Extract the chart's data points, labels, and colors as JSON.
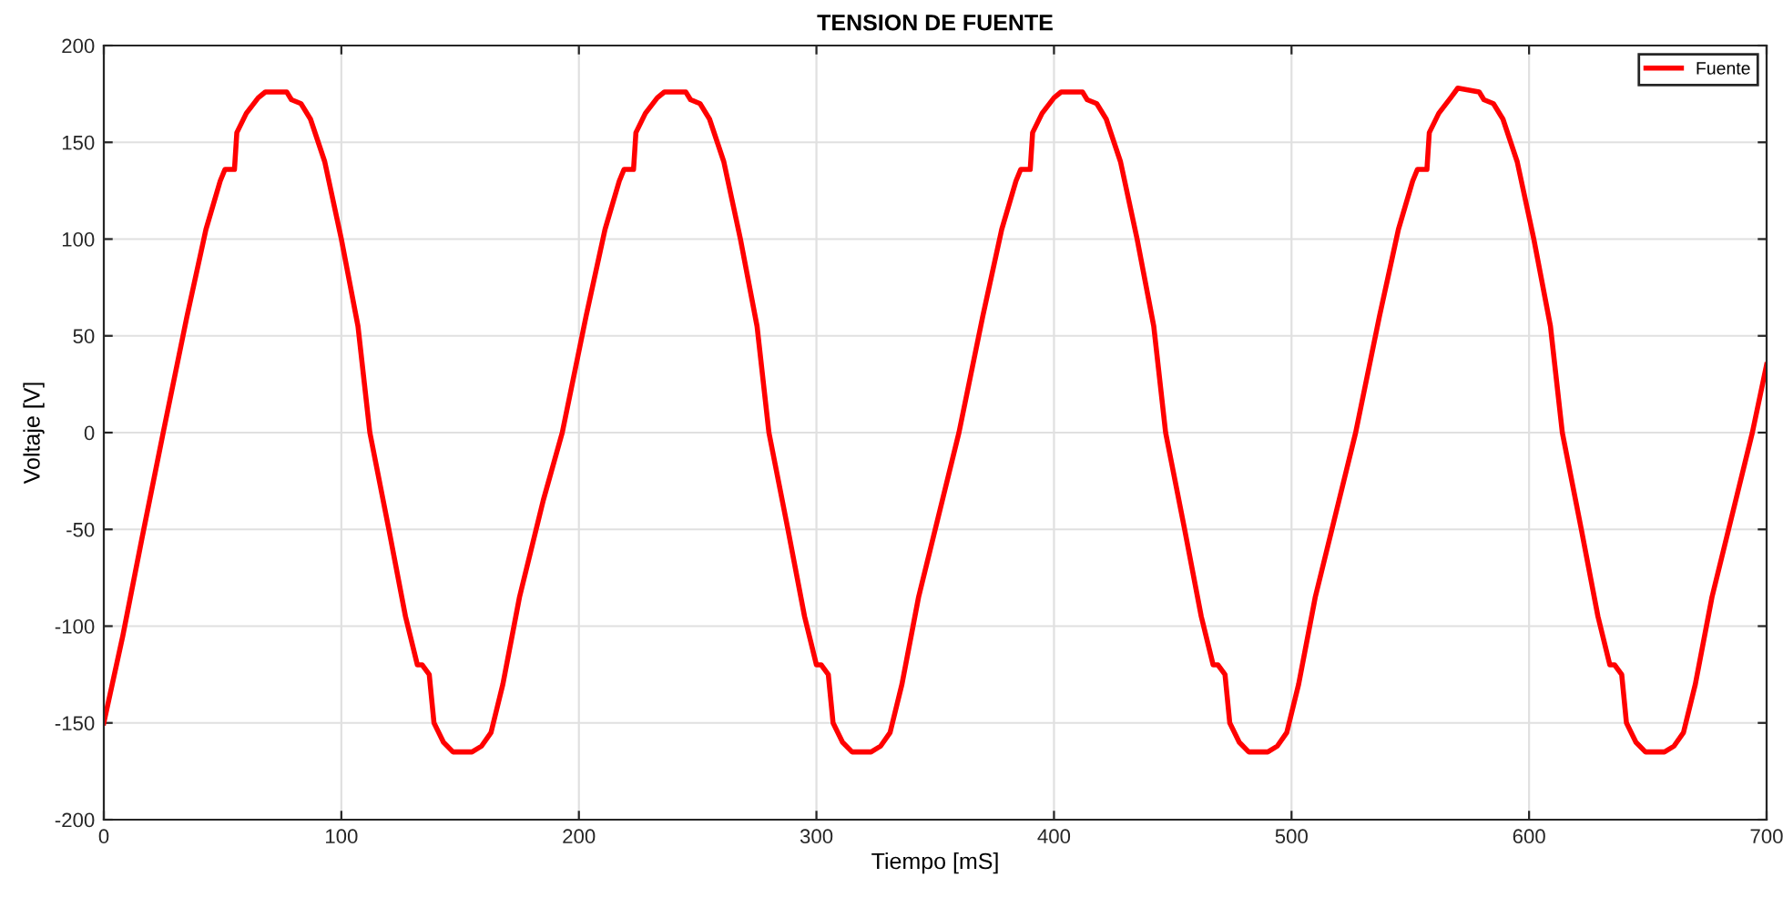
{
  "chart_data": {
    "type": "line",
    "title": "TENSION DE FUENTE",
    "xlabel": "Tiempo [mS]",
    "ylabel": "Voltaje [V]",
    "xlim": [
      0,
      700
    ],
    "xticks": [
      0,
      100,
      200,
      300,
      400,
      500,
      600,
      700
    ],
    "ylim": [
      -200,
      200
    ],
    "yticks": [
      -200,
      -150,
      -100,
      -50,
      0,
      50,
      100,
      150,
      200
    ],
    "grid": true,
    "legend": "top right",
    "marker": "none",
    "line_style": "solid",
    "series": [
      {
        "name": "Fuente",
        "color": "#ff0000",
        "x": [
          0,
          8,
          16,
          25,
          35,
          43,
          49,
          51,
          55,
          56,
          60,
          65,
          68,
          77,
          79,
          83,
          87,
          93,
          100,
          107,
          112,
          120,
          127,
          132,
          134,
          137,
          139,
          143,
          147,
          155,
          159,
          163,
          168,
          175,
          185,
          193,
          203,
          211,
          217,
          219,
          223,
          224,
          228,
          233,
          236,
          245,
          247,
          251,
          255,
          261,
          268,
          275,
          280,
          288,
          295,
          300,
          302,
          305,
          307,
          311,
          315,
          323,
          327,
          331,
          336,
          343,
          353,
          360,
          370,
          378,
          384,
          386,
          390,
          391,
          395,
          400,
          403,
          412,
          414,
          418,
          422,
          428,
          435,
          442,
          447,
          455,
          462,
          467,
          469,
          472,
          474,
          478,
          482,
          490,
          494,
          498,
          503,
          510,
          520,
          527,
          537,
          545,
          551,
          553,
          557,
          558,
          562,
          567,
          570,
          579,
          581,
          585,
          589,
          595,
          602,
          609,
          614,
          622,
          629,
          634,
          636,
          639,
          641,
          645,
          649,
          657,
          661,
          665,
          670,
          677,
          687,
          694,
          700
        ],
        "values": [
          -150,
          -105,
          -55,
          0,
          60,
          105,
          130,
          136,
          136,
          155,
          165,
          173,
          176,
          176,
          172,
          170,
          162,
          140,
          100,
          55,
          0,
          -50,
          -95,
          -120,
          -120,
          -125,
          -150,
          -160,
          -165,
          -165,
          -162,
          -155,
          -130,
          -85,
          -35,
          0,
          60,
          105,
          130,
          136,
          136,
          155,
          165,
          173,
          176,
          176,
          172,
          170,
          162,
          140,
          100,
          55,
          0,
          -50,
          -95,
          -120,
          -120,
          -125,
          -150,
          -160,
          -165,
          -165,
          -162,
          -155,
          -130,
          -85,
          -35,
          0,
          60,
          105,
          130,
          136,
          136,
          155,
          165,
          173,
          176,
          176,
          172,
          170,
          162,
          140,
          100,
          55,
          0,
          -50,
          -95,
          -120,
          -120,
          -125,
          -150,
          -160,
          -165,
          -165,
          -162,
          -155,
          -130,
          -85,
          -35,
          0,
          60,
          105,
          130,
          136,
          136,
          155,
          165,
          173,
          178,
          176,
          172,
          170,
          162,
          140,
          100,
          55,
          0,
          -50,
          -95,
          -120,
          -120,
          -125,
          -150,
          -160,
          -165,
          -165,
          -162,
          -155,
          -130,
          -85,
          -35,
          0,
          35
        ]
      }
    ]
  }
}
